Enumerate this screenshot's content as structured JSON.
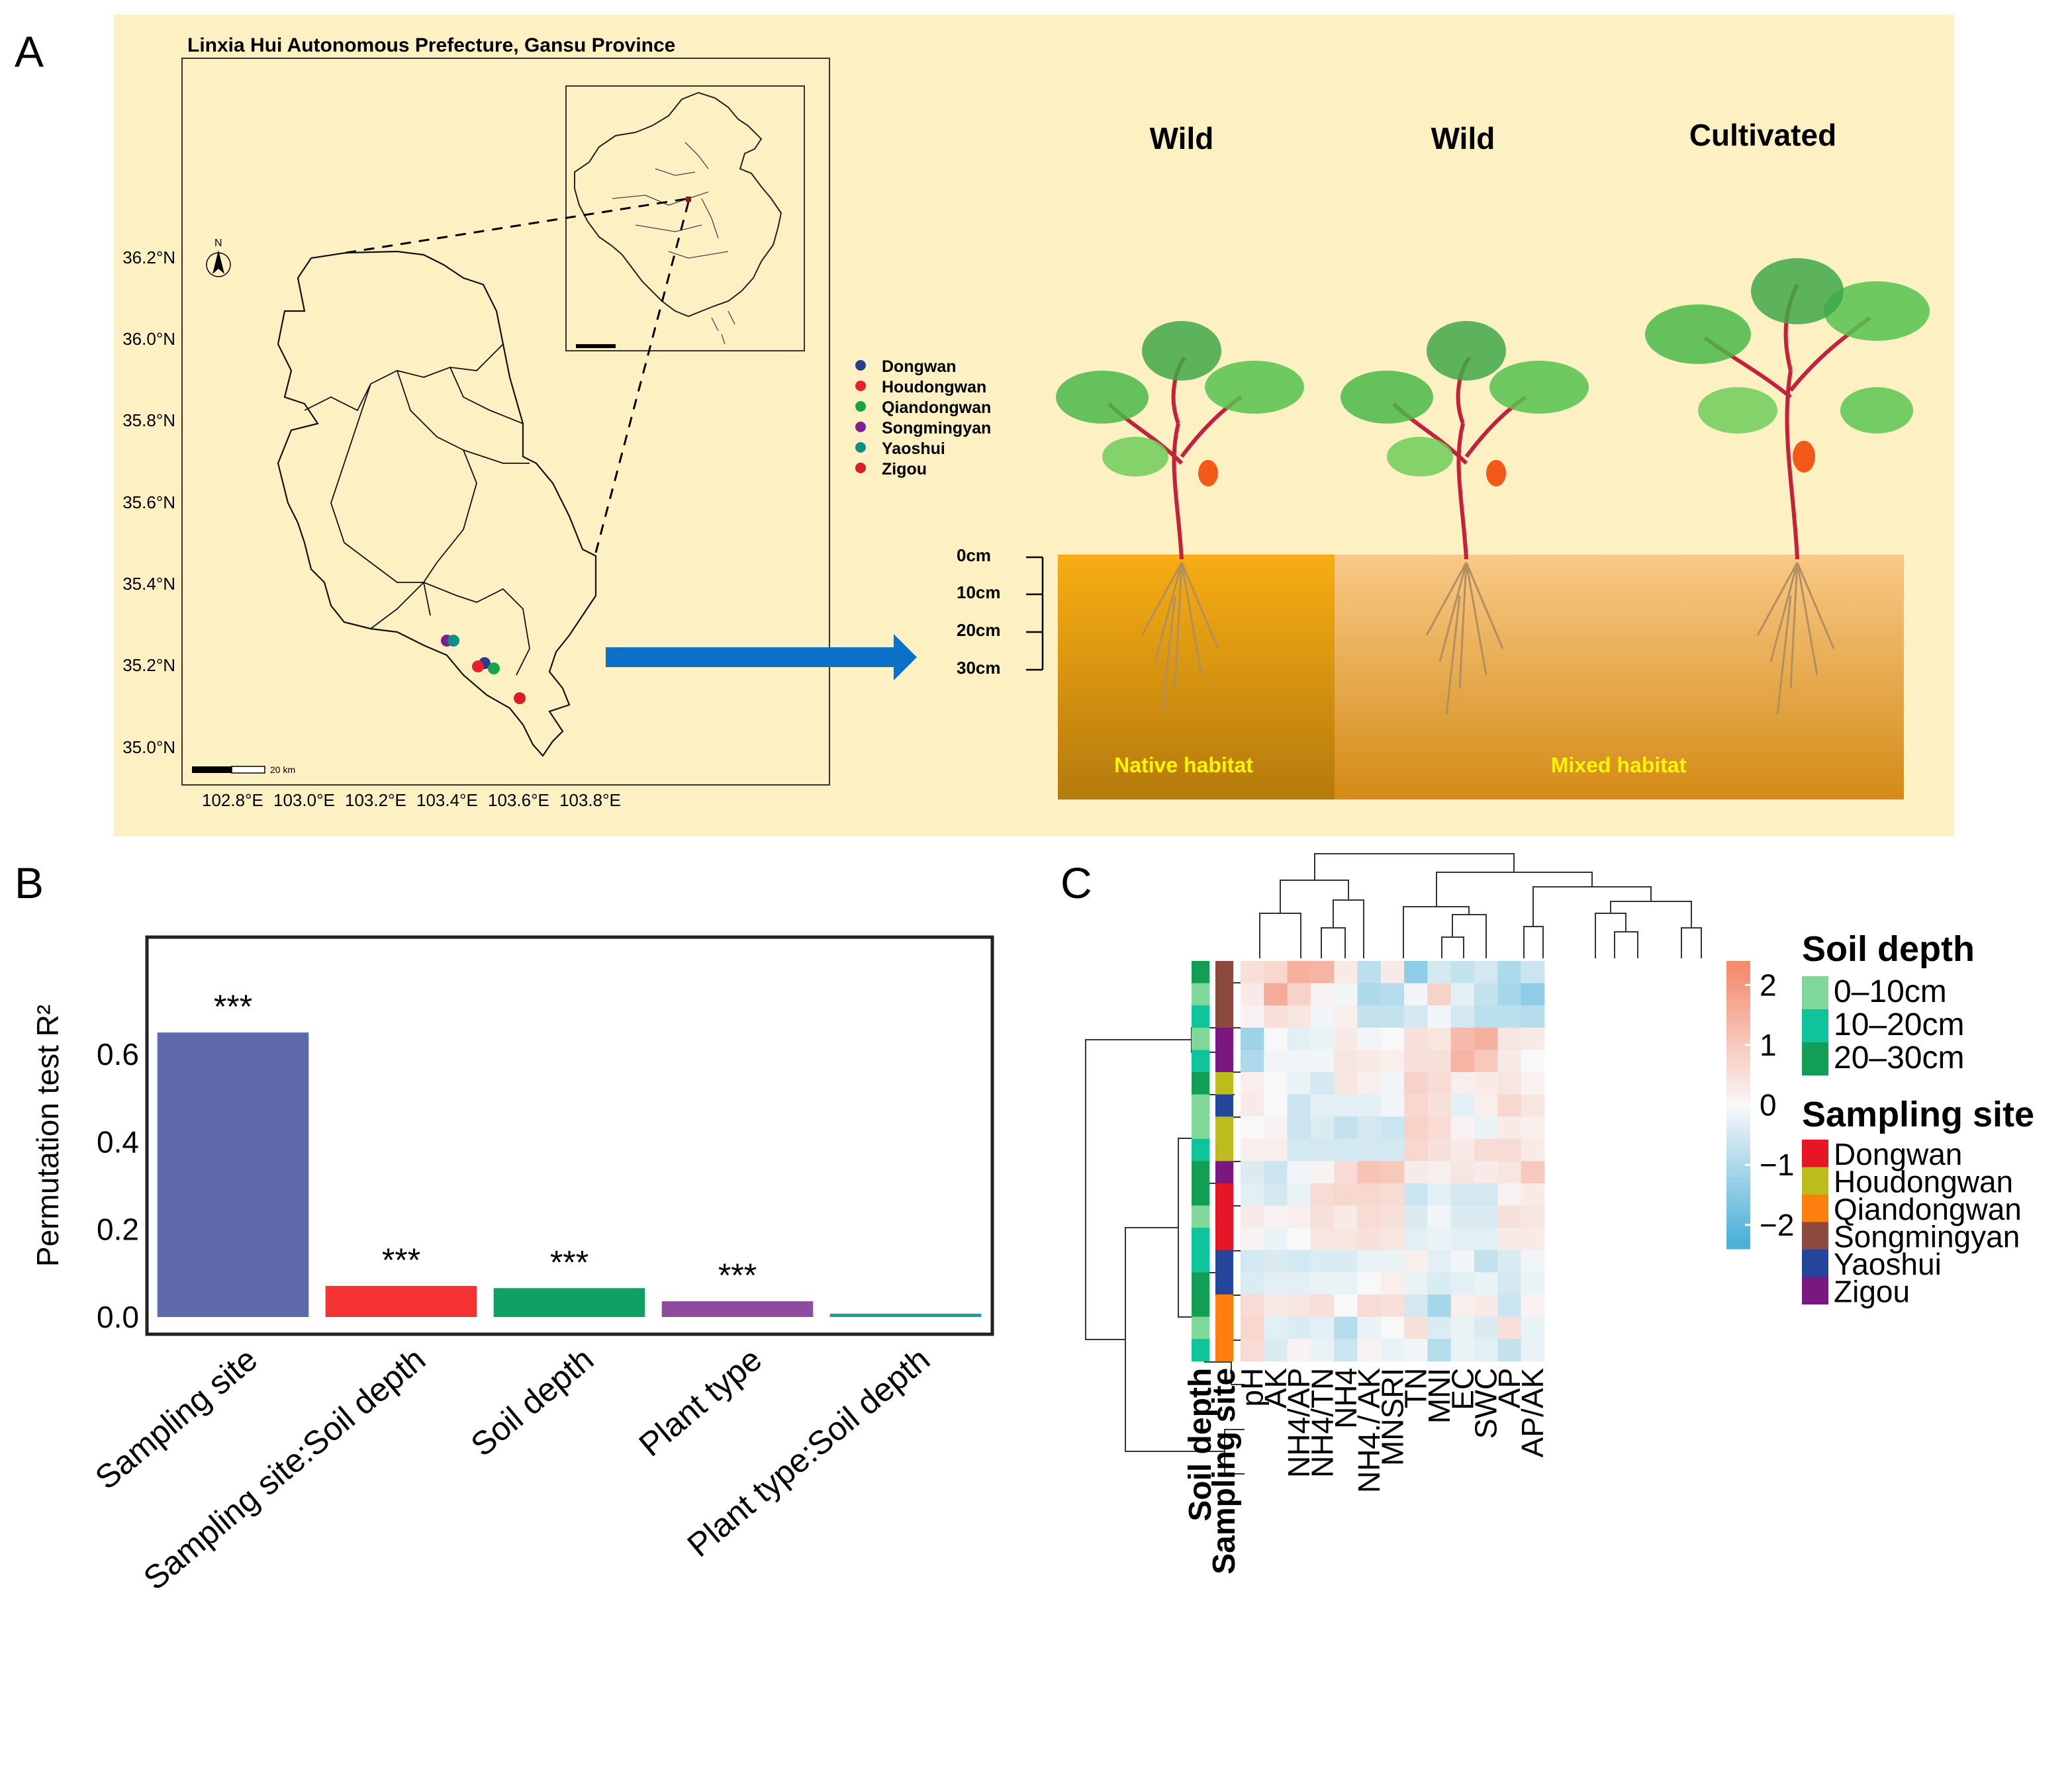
{
  "panels": {
    "a": "A",
    "b": "B",
    "c": "C"
  },
  "map": {
    "title": "Linxia Hui Autonomous Prefecture, Gansu Province",
    "lat_ticks": [
      "36.2°N",
      "36.0°N",
      "35.8°N",
      "35.6°N",
      "35.4°N",
      "35.2°N",
      "35.0°N"
    ],
    "lon_ticks": [
      "102.8°E",
      "103.0°E",
      "103.2°E",
      "103.4°E",
      "103.6°E",
      "103.8°E"
    ],
    "scale_label": "20 km",
    "legend": [
      {
        "name": "Dongwan",
        "color": "#2b3a8f"
      },
      {
        "name": "Houdongwan",
        "color": "#e8212a"
      },
      {
        "name": "Qiandongwan",
        "color": "#16a34a"
      },
      {
        "name": "Songmingyan",
        "color": "#7c1f8f"
      },
      {
        "name": "Yaoshui",
        "color": "#0f8f83"
      },
      {
        "name": "Zigou",
        "color": "#d91e28"
      }
    ]
  },
  "habitat": {
    "labels": [
      "Wild",
      "Wild",
      "Cultivated"
    ],
    "depths": [
      "0cm",
      "10cm",
      "20cm",
      "30cm"
    ],
    "native": "Native habitat",
    "mixed": "Mixed habitat"
  },
  "chart_data": [
    {
      "type": "bar",
      "ylabel": "Permutation test R²",
      "categories": [
        "Sampling site",
        "Sampling site:Soil depth",
        "Soil depth",
        "Plant type",
        "Plant type:Soil depth"
      ],
      "values": [
        0.65,
        0.071,
        0.066,
        0.036,
        0.006
      ],
      "significance": [
        "***",
        "***",
        "***",
        "***",
        ""
      ],
      "colors": [
        "#5e6aaa",
        "#f53333",
        "#0ea064",
        "#8e4c9f",
        "#179ea0"
      ],
      "yticks": [
        "0.0",
        "0.2",
        "0.4",
        "0.6"
      ],
      "ylim": [
        0,
        0.78
      ]
    },
    {
      "type": "heatmap",
      "columns": [
        "pH",
        "AK",
        "NH4/AP",
        "NH4/TN",
        "NH4",
        "NH4./ AK",
        "MNSRI",
        "TN",
        "MNI",
        "EC",
        "SWC",
        "AP",
        "AP/AK"
      ],
      "rows": [
        {
          "depth": "20–30cm",
          "site": "Songmingyan",
          "values": [
            0.5,
            0.7,
            1.5,
            1.4,
            0.3,
            -0.8,
            0.3,
            -1.4,
            -0.5,
            -0.7,
            -0.5,
            -1.0,
            -0.6
          ]
        },
        {
          "depth": "0–10cm",
          "site": "Songmingyan",
          "values": [
            0.3,
            1.6,
            0.8,
            0.1,
            -0.1,
            -1.0,
            -0.9,
            -0.1,
            0.8,
            -0.3,
            -0.7,
            -1.1,
            -1.4
          ]
        },
        {
          "depth": "10–20cm",
          "site": "Songmingyan",
          "values": [
            0.1,
            0.5,
            0.4,
            -0.1,
            0.2,
            -0.7,
            -0.7,
            -0.5,
            -0.1,
            -0.5,
            -0.8,
            -0.8,
            -0.9
          ]
        },
        {
          "depth": "0–10cm",
          "site": "Zigou",
          "values": [
            -1.2,
            0.0,
            -0.3,
            -0.2,
            0.3,
            -0.1,
            0.0,
            0.5,
            0.4,
            1.3,
            1.5,
            0.4,
            0.3
          ]
        },
        {
          "depth": "10–20cm",
          "site": "Zigou",
          "values": [
            -1.0,
            -0.1,
            -0.1,
            -0.1,
            0.4,
            0.3,
            0.2,
            0.5,
            0.5,
            1.4,
            1.0,
            0.3,
            0.0
          ]
        },
        {
          "depth": "20–30cm",
          "site": "Houdongwan",
          "values": [
            0.2,
            0.0,
            -0.2,
            -0.5,
            0.4,
            0.2,
            -0.1,
            0.8,
            0.6,
            0.2,
            0.3,
            0.4,
            0.1
          ]
        },
        {
          "depth": "0–10cm",
          "site": "Yaoshui",
          "values": [
            0.3,
            0.0,
            -0.6,
            -0.3,
            -0.3,
            -0.3,
            -0.1,
            0.7,
            0.5,
            -0.3,
            0.2,
            0.7,
            0.4
          ]
        },
        {
          "depth": "0–10cm",
          "site": "Houdongwan",
          "values": [
            0.0,
            0.1,
            -0.6,
            -0.4,
            -0.7,
            -0.5,
            -0.6,
            0.8,
            0.6,
            0.1,
            -0.2,
            0.3,
            0.2
          ]
        },
        {
          "depth": "10–20cm",
          "site": "Houdongwan",
          "values": [
            0.2,
            0.2,
            -0.5,
            -0.5,
            -0.5,
            -0.5,
            -0.5,
            0.7,
            0.5,
            0.3,
            0.6,
            0.6,
            0.3
          ]
        },
        {
          "depth": "20–30cm",
          "site": "Zigou",
          "values": [
            -0.4,
            -0.6,
            -0.1,
            0.1,
            0.6,
            1.1,
            1.0,
            0.3,
            0.2,
            0.4,
            0.3,
            0.4,
            1.0
          ]
        },
        {
          "depth": "20–30cm",
          "site": "Dongwan",
          "values": [
            -0.3,
            -0.5,
            -0.2,
            0.6,
            0.7,
            0.7,
            0.6,
            -0.6,
            -0.3,
            -0.5,
            -0.5,
            0.1,
            0.3
          ]
        },
        {
          "depth": "0–10cm",
          "site": "Dongwan",
          "values": [
            0.3,
            0.1,
            0.2,
            0.5,
            0.3,
            0.6,
            0.5,
            -0.4,
            -0.1,
            -0.4,
            -0.4,
            0.5,
            0.4
          ]
        },
        {
          "depth": "10–20cm",
          "site": "Dongwan",
          "values": [
            0.1,
            -0.2,
            0.0,
            0.4,
            0.4,
            0.5,
            0.4,
            -0.3,
            -0.2,
            -0.3,
            -0.3,
            0.3,
            0.3
          ]
        },
        {
          "depth": "10–20cm",
          "site": "Yaoshui",
          "values": [
            -0.5,
            -0.4,
            -0.5,
            -0.4,
            -0.4,
            -0.2,
            -0.2,
            0.2,
            -0.3,
            -0.1,
            -0.7,
            -0.4,
            -0.1
          ]
        },
        {
          "depth": "20–30cm",
          "site": "Yaoshui",
          "values": [
            -0.4,
            -0.3,
            -0.3,
            -0.2,
            -0.2,
            0.0,
            0.2,
            -0.2,
            -0.4,
            -0.3,
            -0.2,
            -0.5,
            -0.2
          ]
        },
        {
          "depth": "20–30cm",
          "site": "Qiandongwan",
          "values": [
            0.6,
            0.3,
            0.4,
            0.5,
            0.0,
            0.6,
            0.5,
            -0.5,
            -1.1,
            0.2,
            0.3,
            -0.6,
            0.1
          ]
        },
        {
          "depth": "0–10cm",
          "site": "Qiandongwan",
          "values": [
            0.7,
            -0.3,
            -0.4,
            -0.3,
            -0.9,
            -0.2,
            0.0,
            0.5,
            -0.4,
            -0.2,
            -0.4,
            0.5,
            -0.2
          ]
        },
        {
          "depth": "10–20cm",
          "site": "Qiandongwan",
          "values": [
            0.6,
            -0.4,
            0.1,
            -0.2,
            -0.6,
            0.1,
            -0.2,
            -0.1,
            -0.9,
            -0.2,
            -0.3,
            -0.7,
            -0.2
          ]
        }
      ],
      "colorbar_ticks": [
        2,
        1,
        0,
        -1,
        -2
      ],
      "colorbar_labels": [
        "2",
        "1",
        "0",
        "−1",
        "−2"
      ],
      "color_low": "#4cb0d8",
      "color_mid": "#f8f8f8",
      "color_high": "#f58a6e",
      "soil_depth_title": "Soil depth",
      "depth_legend": [
        {
          "name": "0–10cm",
          "color": "#7fd89a"
        },
        {
          "name": "10–20cm",
          "color": "#0fc49a"
        },
        {
          "name": "20–30cm",
          "color": "#129e54"
        }
      ],
      "sampling_site_title": "Sampling site",
      "site_legend": [
        {
          "name": "Dongwan",
          "color": "#e51727"
        },
        {
          "name": "Houdongwan",
          "color": "#bcbd1c"
        },
        {
          "name": "Qiandongwan",
          "color": "#ff7f0e"
        },
        {
          "name": "Songmingyan",
          "color": "#8c4a3c"
        },
        {
          "name": "Yaoshui",
          "color": "#24459c"
        },
        {
          "name": "Zigou",
          "color": "#7a1780"
        }
      ],
      "annotation_axis_labels": [
        "Soil depth",
        "Sampling site"
      ]
    }
  ]
}
